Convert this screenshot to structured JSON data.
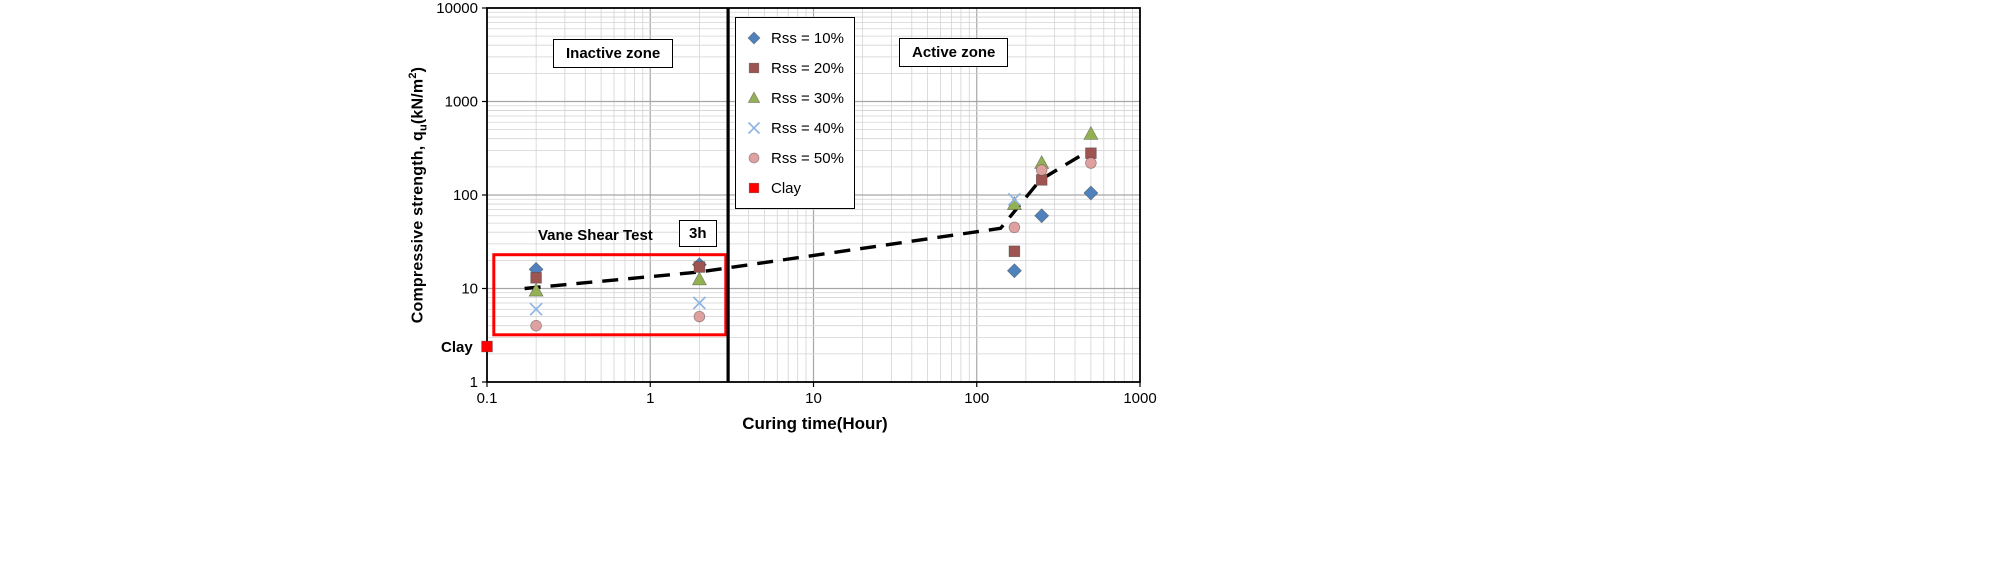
{
  "figure": {
    "background": "#ffffff"
  },
  "chart_data": {
    "type": "scatter",
    "title": "",
    "xlabel": "Curing time(Hour)",
    "ylabel": {
      "pre": "Compressive strength, q",
      "sub": "u",
      "mid": "(kN/m",
      "sup": "2",
      "end": ")"
    },
    "xscale": "log",
    "yscale": "log",
    "xlim": [
      0.1,
      1000
    ],
    "ylim": [
      1,
      10000
    ],
    "x_ticks": [
      "0.1",
      "1",
      "10",
      "100",
      "1000"
    ],
    "y_ticks": [
      "1",
      "10",
      "100",
      "1000",
      "10000"
    ],
    "grid": {
      "on": true,
      "minor_color": "#d3d3d3",
      "major_color": "#a6a6a6"
    },
    "legend": {
      "position": "inside-top",
      "border_color": "#000000",
      "background": "#ffffff"
    },
    "series": [
      {
        "name": "Rss = 10%",
        "marker": "diamond",
        "color": "#4F81BD",
        "points": [
          [
            0.2,
            16
          ],
          [
            2,
            18
          ],
          [
            170,
            15.5
          ],
          [
            250,
            60
          ],
          [
            500,
            105
          ]
        ]
      },
      {
        "name": "Rss = 20%",
        "marker": "square",
        "color": "#9E5450",
        "points": [
          [
            0.2,
            13
          ],
          [
            2,
            17
          ],
          [
            170,
            25
          ],
          [
            250,
            145
          ],
          [
            500,
            280
          ]
        ]
      },
      {
        "name": "Rss = 30%",
        "marker": "triangle",
        "color": "#94B054",
        "points": [
          [
            0.2,
            9.5
          ],
          [
            2,
            12.5
          ],
          [
            170,
            80
          ],
          [
            250,
            220
          ],
          [
            500,
            450
          ]
        ]
      },
      {
        "name": "Rss = 40%",
        "marker": "x",
        "color": "#8EB4E3",
        "points": [
          [
            0.2,
            6
          ],
          [
            2,
            7
          ],
          [
            170,
            90
          ]
        ]
      },
      {
        "name": "Rss = 50%",
        "marker": "circle",
        "color": "#DFA0A0",
        "points": [
          [
            0.2,
            4
          ],
          [
            2,
            5
          ],
          [
            170,
            45
          ],
          [
            250,
            185
          ],
          [
            500,
            220
          ]
        ]
      },
      {
        "name": "Clay",
        "marker": "square",
        "color": "#FF0000",
        "points": [
          [
            0.1,
            2.4
          ]
        ]
      }
    ],
    "trend_line": {
      "style": "dashed",
      "color": "#000000",
      "points": [
        [
          0.17,
          10
        ],
        [
          2,
          15
        ],
        [
          140,
          44
        ],
        [
          245,
          145
        ],
        [
          490,
          300
        ]
      ]
    },
    "divider_x": 3,
    "annotations": {
      "inactive_zone": "Inactive zone",
      "active_zone": "Active zone",
      "vane_shear_test": "Vane Shear Test",
      "boundary_time": "3h",
      "clay_axis_label": "Clay"
    },
    "highlight_box": {
      "x_min": 0.11,
      "x_max": 2.9,
      "y_min": 3.2,
      "y_max": 23,
      "color": "#FF0000"
    }
  }
}
